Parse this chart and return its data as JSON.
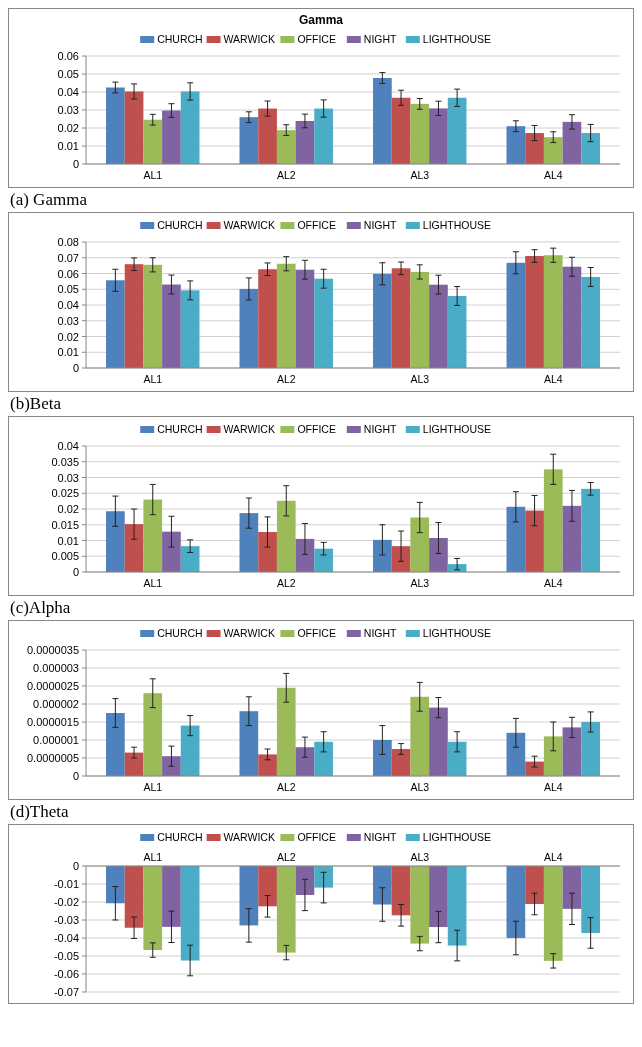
{
  "chart_data": [
    {
      "type": "bar",
      "title": "Gamma",
      "annotations": [
        "(a) Gamma"
      ],
      "categories": [
        "AL1",
        "AL2",
        "AL3",
        "AL4"
      ],
      "ylim": [
        0,
        0.06
      ],
      "yticks": [
        0,
        0.01,
        0.02,
        0.03,
        0.04,
        0.05,
        0.06
      ],
      "grid": "y",
      "legend": "top",
      "series": [
        {
          "name": "CHURCH",
          "color": "#4f81bd",
          "values": [
            0.0425,
            0.026,
            0.0478,
            0.021
          ],
          "errors": [
            0.003,
            0.003,
            0.003,
            0.003
          ]
        },
        {
          "name": "WARWICK",
          "color": "#c0504d",
          "values": [
            0.0403,
            0.0308,
            0.0368,
            0.0172
          ],
          "errors": [
            0.0042,
            0.0042,
            0.0042,
            0.0042
          ]
        },
        {
          "name": "OFFICE",
          "color": "#9bbb59",
          "values": [
            0.0246,
            0.0188,
            0.0334,
            0.0149
          ],
          "errors": [
            0.003,
            0.003,
            0.003,
            0.003
          ]
        },
        {
          "name": "NIGHT",
          "color": "#8064a2",
          "values": [
            0.0297,
            0.0239,
            0.0309,
            0.0234
          ],
          "errors": [
            0.0038,
            0.0038,
            0.004,
            0.004
          ]
        },
        {
          "name": "LIGHTHOUSE",
          "color": "#4bacc6",
          "values": [
            0.0403,
            0.0308,
            0.0368,
            0.0172
          ],
          "errors": [
            0.0048,
            0.0048,
            0.0048,
            0.0048
          ]
        }
      ]
    },
    {
      "type": "bar",
      "annotations": [
        "(b)Beta"
      ],
      "categories": [
        "AL1",
        "AL2",
        "AL3",
        "AL4"
      ],
      "ylim": [
        0,
        0.08
      ],
      "yticks": [
        0,
        0.01,
        0.02,
        0.03,
        0.04,
        0.05,
        0.06,
        0.07,
        0.08
      ],
      "grid": "y",
      "legend": "top",
      "series": [
        {
          "name": "CHURCH",
          "color": "#4f81bd",
          "values": [
            0.0557,
            0.0502,
            0.0598,
            0.0668
          ],
          "errors": [
            0.007,
            0.007,
            0.007,
            0.007
          ]
        },
        {
          "name": "WARWICK",
          "color": "#c0504d",
          "values": [
            0.0659,
            0.0627,
            0.0633,
            0.0711
          ],
          "errors": [
            0.004,
            0.004,
            0.004,
            0.004
          ]
        },
        {
          "name": "OFFICE",
          "color": "#9bbb59",
          "values": [
            0.0655,
            0.0662,
            0.061,
            0.0716
          ],
          "errors": [
            0.0045,
            0.0045,
            0.0045,
            0.0045
          ]
        },
        {
          "name": "NIGHT",
          "color": "#8064a2",
          "values": [
            0.053,
            0.0624,
            0.0529,
            0.0643
          ],
          "errors": [
            0.006,
            0.006,
            0.006,
            0.006
          ]
        },
        {
          "name": "LIGHTHOUSE",
          "color": "#4bacc6",
          "values": [
            0.0493,
            0.0567,
            0.0457,
            0.0578
          ],
          "errors": [
            0.006,
            0.006,
            0.006,
            0.006
          ]
        }
      ]
    },
    {
      "type": "bar",
      "annotations": [
        "(c)Alpha"
      ],
      "categories": [
        "AL1",
        "AL2",
        "AL3",
        "AL4"
      ],
      "ylim": [
        0,
        0.04
      ],
      "yticks": [
        0,
        0.005,
        0.01,
        0.015,
        0.02,
        0.025,
        0.03,
        0.035,
        0.04
      ],
      "grid": "y",
      "legend": "top",
      "series": [
        {
          "name": "CHURCH",
          "color": "#4f81bd",
          "values": [
            0.0193,
            0.0187,
            0.0102,
            0.0207
          ],
          "errors": [
            0.0048,
            0.0048,
            0.0048,
            0.0048
          ]
        },
        {
          "name": "WARWICK",
          "color": "#c0504d",
          "values": [
            0.0152,
            0.0127,
            0.0082,
            0.0195
          ],
          "errors": [
            0.0048,
            0.0048,
            0.0048,
            0.0048
          ]
        },
        {
          "name": "OFFICE",
          "color": "#9bbb59",
          "values": [
            0.023,
            0.0226,
            0.0173,
            0.0326
          ],
          "errors": [
            0.0048,
            0.0048,
            0.0048,
            0.0048
          ]
        },
        {
          "name": "NIGHT",
          "color": "#8064a2",
          "values": [
            0.0128,
            0.0105,
            0.0108,
            0.021
          ],
          "errors": [
            0.0049,
            0.0049,
            0.0049,
            0.0049
          ]
        },
        {
          "name": "LIGHTHOUSE",
          "color": "#4bacc6",
          "values": [
            0.0082,
            0.0074,
            0.0025,
            0.0264
          ],
          "errors": [
            0.002,
            0.002,
            0.0018,
            0.002
          ]
        }
      ]
    },
    {
      "type": "bar",
      "annotations": [
        "(d)Theta"
      ],
      "categories": [
        "AL1",
        "AL2",
        "AL3",
        "AL4"
      ],
      "ylim": [
        0,
        3.5e-06
      ],
      "yticks": [
        {
          "value": 0,
          "label": "0"
        },
        {
          "value": 5e-07,
          "label": "0.0000005"
        },
        {
          "value": 1e-06,
          "label": "0.000001"
        },
        {
          "value": 1.5e-06,
          "label": "0.0000015"
        },
        {
          "value": 2e-06,
          "label": "0.000002"
        },
        {
          "value": 2.5e-06,
          "label": "0.0000025"
        },
        {
          "value": 3e-06,
          "label": "0.000003"
        },
        {
          "value": 3.5e-06,
          "label": "0.0000035"
        }
      ],
      "grid": "y",
      "legend": "top",
      "series": [
        {
          "name": "CHURCH",
          "color": "#4f81bd",
          "values": [
            1.75e-06,
            1.8e-06,
            1e-06,
            1.2e-06
          ],
          "errors": [
            4e-07,
            4e-07,
            4e-07,
            4e-07
          ]
        },
        {
          "name": "WARWICK",
          "color": "#c0504d",
          "values": [
            6.5e-07,
            6e-07,
            7.5e-07,
            4e-07
          ],
          "errors": [
            1.5e-07,
            1.5e-07,
            1.5e-07,
            1.5e-07
          ]
        },
        {
          "name": "OFFICE",
          "color": "#9bbb59",
          "values": [
            2.3e-06,
            2.45e-06,
            2.2e-06,
            1.1e-06
          ],
          "errors": [
            4e-07,
            4e-07,
            4e-07,
            4e-07
          ]
        },
        {
          "name": "NIGHT",
          "color": "#8064a2",
          "values": [
            5.5e-07,
            8e-07,
            1.9e-06,
            1.35e-06
          ],
          "errors": [
            2.8e-07,
            2.8e-07,
            2.8e-07,
            2.8e-07
          ]
        },
        {
          "name": "LIGHTHOUSE",
          "color": "#4bacc6",
          "values": [
            1.4e-06,
            9.5e-07,
            9.5e-07,
            1.5e-06
          ],
          "errors": [
            2.8e-07,
            2.8e-07,
            2.8e-07,
            2.8e-07
          ]
        }
      ]
    },
    {
      "type": "bar",
      "categories": [
        "AL1",
        "AL2",
        "AL3",
        "AL4"
      ],
      "ylim": [
        -0.07,
        0
      ],
      "yticks": [
        -0.07,
        -0.06,
        -0.05,
        -0.04,
        -0.03,
        -0.02,
        -0.01,
        0
      ],
      "grid": "y",
      "legend": "top",
      "series": [
        {
          "name": "CHURCH",
          "color": "#4f81bd",
          "values": [
            -0.0207,
            -0.033,
            -0.0214,
            -0.04
          ],
          "errors": [
            0.0093,
            0.0093,
            0.0093,
            0.0093
          ]
        },
        {
          "name": "WARWICK",
          "color": "#c0504d",
          "values": [
            -0.0343,
            -0.0224,
            -0.0274,
            -0.0211
          ],
          "errors": [
            0.006,
            0.006,
            0.006,
            0.006
          ]
        },
        {
          "name": "OFFICE",
          "color": "#9bbb59",
          "values": [
            -0.0467,
            -0.0481,
            -0.0431,
            -0.0527
          ],
          "errors": [
            0.004,
            0.004,
            0.004,
            0.004
          ]
        },
        {
          "name": "NIGHT",
          "color": "#8064a2",
          "values": [
            -0.0338,
            -0.0161,
            -0.0339,
            -0.0238
          ],
          "errors": [
            0.0087,
            0.0087,
            0.0087,
            0.0087
          ]
        },
        {
          "name": "LIGHTHOUSE",
          "color": "#4bacc6",
          "values": [
            -0.0525,
            -0.012,
            -0.0442,
            -0.0372
          ],
          "errors": [
            0.0085,
            0.0085,
            0.0085,
            0.0085
          ]
        }
      ]
    }
  ]
}
